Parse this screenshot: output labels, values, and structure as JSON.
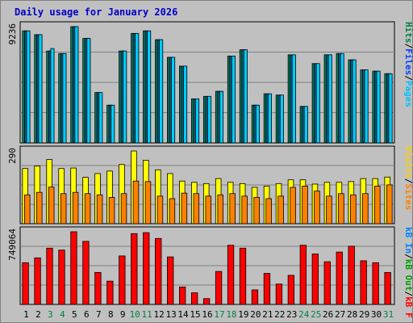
{
  "chart_data": {
    "type": "bar",
    "title": "Daily usage for January 2026",
    "categories": [
      "1",
      "2",
      "3",
      "4",
      "5",
      "6",
      "7",
      "8",
      "9",
      "10",
      "11",
      "12",
      "13",
      "14",
      "15",
      "16",
      "17",
      "18",
      "19",
      "20",
      "21",
      "22",
      "23",
      "24",
      "25",
      "26",
      "27",
      "28",
      "29",
      "30",
      "31"
    ],
    "weekend_days": [
      "3",
      "4",
      "10",
      "11",
      "17",
      "18",
      "24",
      "25",
      "31"
    ],
    "legend": {
      "top": [
        {
          "label": "Hits",
          "color": "#008040"
        },
        {
          "label": "Files",
          "color": "#0040ff"
        },
        {
          "label": "Pages",
          "color": "#00c0ff"
        }
      ],
      "middle": [
        {
          "label": "Visits",
          "color": "#ffcc00"
        },
        {
          "label": "Sites",
          "color": "#ff8000"
        }
      ],
      "bottom": [
        {
          "label": "kB In",
          "color": "#0080ff"
        },
        {
          "label": "kB Out",
          "color": "#00a000"
        },
        {
          "label": "kB F",
          "color": "#ff0000"
        }
      ]
    },
    "panels": [
      {
        "id": "hits-files-pages",
        "ylabel": "9236",
        "ymax": 9236,
        "series": [
          {
            "name": "Hits",
            "color": "#00805a",
            "values": [
              8900,
              8600,
              7300,
              7100,
              9236,
              8300,
              4000,
              3000,
              7300,
              8700,
              8900,
              8200,
              6800,
              6100,
              3500,
              3700,
              4100,
              6900,
              7400,
              3000,
              3900,
              3800,
              7000,
              2900,
              6300,
              7000,
              7100,
              6600,
              5800,
              5700,
              5500
            ]
          },
          {
            "name": "Files",
            "color": "#006090",
            "values": [
              8900,
              8600,
              7300,
              7100,
              9236,
              8300,
              4000,
              3000,
              7300,
              8700,
              8900,
              8200,
              6800,
              6100,
              3500,
              3700,
              4100,
              6900,
              7400,
              3000,
              3900,
              3800,
              7000,
              2900,
              6300,
              7000,
              7100,
              6600,
              5800,
              5700,
              5500
            ]
          },
          {
            "name": "Pages",
            "color": "#00ccff",
            "values": [
              8900,
              8600,
              7500,
              7100,
              9236,
              8300,
              4000,
              3000,
              7300,
              8700,
              8900,
              8200,
              6800,
              6100,
              3500,
              3700,
              4100,
              6900,
              7400,
              3000,
              3900,
              3800,
              7000,
              2900,
              6300,
              7000,
              7100,
              6600,
              5800,
              5700,
              5500
            ]
          }
        ]
      },
      {
        "id": "visits-sites",
        "ylabel": "290",
        "ymax": 290,
        "series": [
          {
            "name": "Visits",
            "color": "#ffff00",
            "values": [
              220,
              230,
              256,
              220,
              222,
              185,
              200,
              210,
              236,
              290,
              253,
              215,
              200,
              170,
              165,
              160,
              180,
              165,
              160,
              145,
              150,
              160,
              175,
              175,
              158,
              165,
              165,
              168,
              180,
              180,
              186
            ]
          },
          {
            "name": "Sites",
            "color": "#ff8000",
            "values": [
              115,
              125,
              146,
              120,
              125,
              120,
              115,
              105,
              120,
              170,
              168,
              110,
              100,
              122,
              120,
              110,
              115,
              120,
              110,
              105,
              100,
              110,
              145,
              150,
              130,
              110,
              120,
              115,
              120,
              150,
              155
            ]
          }
        ]
      },
      {
        "id": "kb",
        "ylabel": "749064",
        "ymax": 749064,
        "series": [
          {
            "name": "kB F",
            "color": "#ff0000",
            "values": [
              430000,
              480000,
              580000,
              560000,
              749064,
              650000,
              330000,
              240000,
              500000,
              730000,
              740000,
              680000,
              490000,
              180000,
              120000,
              60000,
              340000,
              610000,
              580000,
              150000,
              320000,
              210000,
              300000,
              610000,
              520000,
              440000,
              540000,
              600000,
              450000,
              430000,
              330000
            ]
          }
        ]
      }
    ]
  }
}
